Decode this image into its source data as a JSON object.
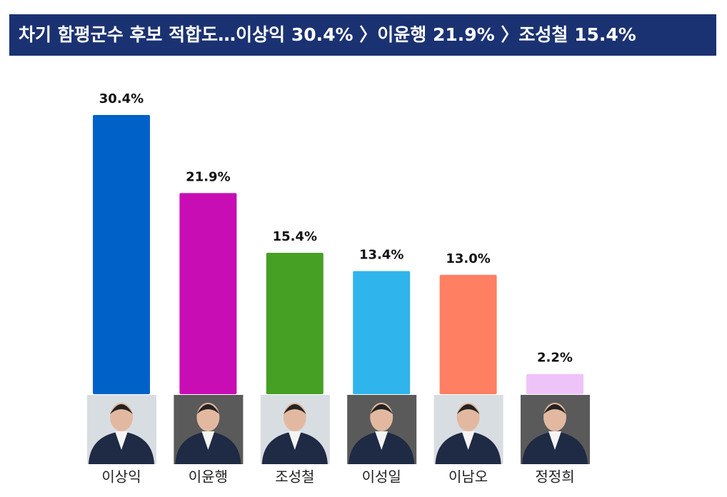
{
  "chart_data": {
    "type": "bar",
    "title": "차기 함평군수 후보 적합도…이상익 30.4% 〉이윤행 21.9% 〉조성철 15.4%",
    "categories": [
      "이상익",
      "이윤행",
      "조성철",
      "이성일",
      "이남오",
      "정정희"
    ],
    "values": [
      30.4,
      21.9,
      15.4,
      13.4,
      13.0,
      2.2
    ],
    "value_labels": [
      "30.4%",
      "21.9%",
      "15.4%",
      "13.4%",
      "13.0%",
      "2.2%"
    ],
    "colors": [
      "#0062c8",
      "#c80db4",
      "#46a024",
      "#30b4ec",
      "#ff7f62",
      "#eec4f8"
    ]
  }
}
